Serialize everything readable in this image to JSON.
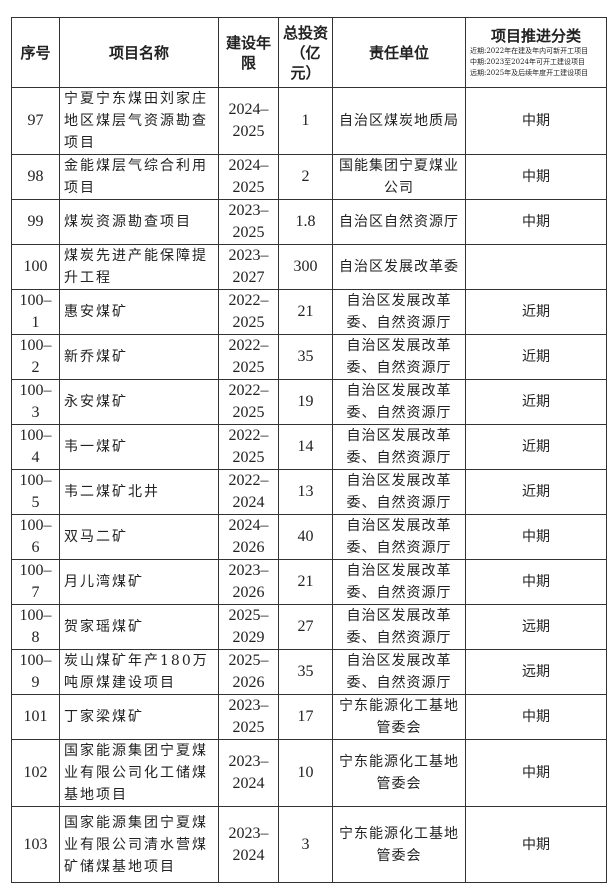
{
  "headers": {
    "no": "序号",
    "name": "项目名称",
    "period": "建设年限",
    "investment": "总投资（亿元）",
    "unit": "责任单位",
    "category": "项目推进分类",
    "category_notes": [
      "近期:2022年在建及年内可新开工项目",
      "中期:2023至2024年可开工建设项目",
      "远期:2025年及后续年度开工建设项目"
    ]
  },
  "rows": [
    {
      "no": "97",
      "name": "宁夏宁东煤田刘家庄地区煤层气资源勘查项目",
      "period": "2024–2025",
      "investment": "1",
      "unit": "自治区煤炭地质局",
      "category": "中期"
    },
    {
      "no": "98",
      "name": "金能煤层气综合利用项目",
      "period": "2024–2025",
      "investment": "2",
      "unit": "国能集团宁夏煤业公司",
      "category": "中期"
    },
    {
      "no": "99",
      "name": "煤炭资源勘查项目",
      "period": "2023–2025",
      "investment": "1.8",
      "unit": "自治区自然资源厅",
      "category": "中期"
    },
    {
      "no": "100",
      "name": "煤炭先进产能保障提升工程",
      "period": "2023–2027",
      "investment": "300",
      "unit": "自治区发展改革委",
      "category": ""
    },
    {
      "no": "100–1",
      "name": "惠安煤矿",
      "period": "2022–2025",
      "investment": "21",
      "unit": "自治区发展改革委、自然资源厅",
      "category": "近期"
    },
    {
      "no": "100–2",
      "name": "新乔煤矿",
      "period": "2022–2025",
      "investment": "35",
      "unit": "自治区发展改革委、自然资源厅",
      "category": "近期"
    },
    {
      "no": "100–3",
      "name": "永安煤矿",
      "period": "2022–2025",
      "investment": "19",
      "unit": "自治区发展改革委、自然资源厅",
      "category": "近期"
    },
    {
      "no": "100–4",
      "name": "韦一煤矿",
      "period": "2022–2025",
      "investment": "14",
      "unit": "自治区发展改革委、自然资源厅",
      "category": "近期"
    },
    {
      "no": "100–5",
      "name": "韦二煤矿北井",
      "period": "2022–2024",
      "investment": "13",
      "unit": "自治区发展改革委、自然资源厅",
      "category": "近期"
    },
    {
      "no": "100–6",
      "name": "双马二矿",
      "period": "2024–2026",
      "investment": "40",
      "unit": "自治区发展改革委、自然资源厅",
      "category": "中期"
    },
    {
      "no": "100–7",
      "name": "月儿湾煤矿",
      "period": "2023–2026",
      "investment": "21",
      "unit": "自治区发展改革委、自然资源厅",
      "category": "中期"
    },
    {
      "no": "100–8",
      "name": "贺家瑶煤矿",
      "period": "2025–2029",
      "investment": "27",
      "unit": "自治区发展改革委、自然资源厅",
      "category": "远期"
    },
    {
      "no": "100–9",
      "name": "炭山煤矿年产180万吨原煤建设项目",
      "period": "2025–2026",
      "investment": "35",
      "unit": "自治区发展改革委、自然资源厅",
      "category": "远期"
    },
    {
      "no": "101",
      "name": "丁家梁煤矿",
      "period": "2023–2025",
      "investment": "17",
      "unit": "宁东能源化工基地管委会",
      "category": "中期"
    },
    {
      "no": "102",
      "name": "国家能源集团宁夏煤业有限公司化工储煤基地项目",
      "period": "2023–2024",
      "investment": "10",
      "unit": "宁东能源化工基地管委会",
      "category": "中期"
    },
    {
      "no": "103",
      "name": "国家能源集团宁夏煤业有限公司清水营煤矿储煤基地项目",
      "period": "2023–2024",
      "investment": "3",
      "unit": "宁东能源化工基地管委会",
      "category": "中期"
    }
  ]
}
